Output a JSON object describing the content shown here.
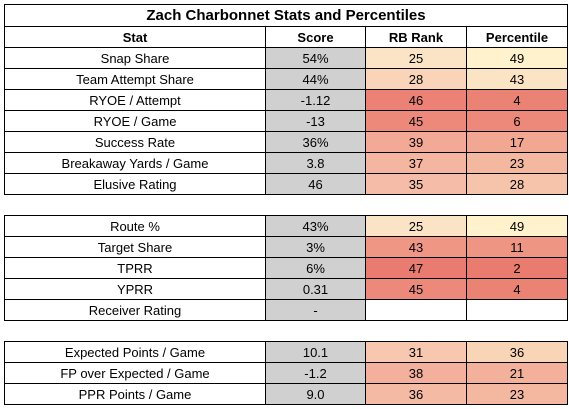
{
  "title": "Zach Charbonnet Stats and Percentiles",
  "headers": [
    "Stat",
    "Score",
    "RB Rank",
    "Percentile"
  ],
  "sections": [
    {
      "rows": [
        {
          "stat": "Snap Share",
          "score": "54%",
          "rank": "25",
          "pct": "49",
          "rank_color": "#fbe3c6",
          "pct_color": "#fff2cc"
        },
        {
          "stat": "Team Attempt Share",
          "score": "44%",
          "rank": "28",
          "pct": "43",
          "rank_color": "#f9d4b8",
          "pct_color": "#fbe4c4"
        },
        {
          "stat": "RYOE / Attempt",
          "score": "-1.12",
          "rank": "46",
          "pct": "4",
          "rank_color": "#ec8175",
          "pct_color": "#eb8375"
        },
        {
          "stat": "RYOE / Game",
          "score": "-13",
          "rank": "45",
          "pct": "6",
          "rank_color": "#ed897b",
          "pct_color": "#ec897a"
        },
        {
          "stat": "Success Rate",
          "score": "36%",
          "rank": "39",
          "pct": "17",
          "rank_color": "#f2aa97",
          "pct_color": "#f1a792"
        },
        {
          "stat": "Breakaway Yards / Game",
          "score": "3.8",
          "rank": "37",
          "pct": "23",
          "rank_color": "#f4b5a1",
          "pct_color": "#f4b8a1"
        },
        {
          "stat": "Elusive Rating",
          "score": "46",
          "rank": "35",
          "pct": "28",
          "rank_color": "#f5bda7",
          "pct_color": "#f6c4ab"
        }
      ]
    },
    {
      "rows": [
        {
          "stat": "Route %",
          "score": "43%",
          "rank": "25",
          "pct": "49",
          "rank_color": "#fbe3c6",
          "pct_color": "#fff2cc"
        },
        {
          "stat": "Target Share",
          "score": "3%",
          "rank": "43",
          "pct": "11",
          "rank_color": "#ef9685",
          "pct_color": "#ee9583"
        },
        {
          "stat": "TPRR",
          "score": "6%",
          "rank": "47",
          "pct": "2",
          "rank_color": "#ea7b70",
          "pct_color": "#ea7b6f"
        },
        {
          "stat": "YPRR",
          "score": "0.31",
          "rank": "45",
          "pct": "4",
          "rank_color": "#ed897b",
          "pct_color": "#eb8375"
        },
        {
          "stat": "Receiver Rating",
          "score": "-",
          "rank": "",
          "pct": "",
          "rank_color": "#ffffff",
          "pct_color": "#ffffff"
        }
      ]
    },
    {
      "rows": [
        {
          "stat": "Expected Points / Game",
          "score": "10.1",
          "rank": "31",
          "pct": "36",
          "rank_color": "#f7c8af",
          "pct_color": "#f9d5b8"
        },
        {
          "stat": "FP over Expected / Game",
          "score": "-1.2",
          "rank": "38",
          "pct": "21",
          "rank_color": "#f3b09c",
          "pct_color": "#f3b19b"
        },
        {
          "stat": "PPR Points / Game",
          "score": "9.0",
          "rank": "36",
          "pct": "23",
          "rank_color": "#f5baa4",
          "pct_color": "#f4b8a1"
        }
      ]
    }
  ]
}
